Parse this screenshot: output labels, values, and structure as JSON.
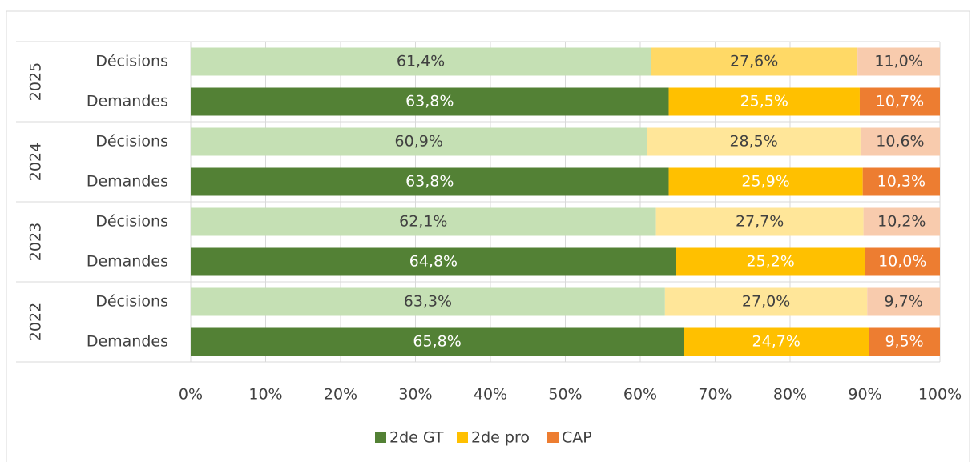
{
  "chart_data": {
    "type": "stacked_bar_horizontal",
    "groups": [
      "2025",
      "2024",
      "2023",
      "2022"
    ],
    "categories": [
      "Décisions",
      "Demandes",
      "Décisions",
      "Demandes",
      "Décisions",
      "Demandes",
      "Décisions",
      "Demandes"
    ],
    "series": [
      {
        "name": "2de GT",
        "color": "#538135",
        "colors": [
          "#c5e0b4",
          "#538135",
          "#c5e0b4",
          "#538135",
          "#c5e0b4",
          "#538135",
          "#c5e0b4",
          "#538135"
        ],
        "values": [
          61.4,
          63.8,
          60.9,
          63.8,
          62.1,
          64.8,
          63.3,
          65.8
        ],
        "value_labels": [
          "61,4%",
          "63,8%",
          "60,9%",
          "63,8%",
          "62,1%",
          "64,8%",
          "63,3%",
          "65,8%"
        ]
      },
      {
        "name": "2de pro",
        "color": "#ffc000",
        "colors": [
          "#ffd966",
          "#ffc000",
          "#ffe699",
          "#ffc000",
          "#ffe699",
          "#ffc000",
          "#ffe699",
          "#ffc000"
        ],
        "values": [
          27.6,
          25.5,
          28.5,
          25.9,
          27.7,
          25.2,
          27.0,
          24.7
        ],
        "value_labels": [
          "27,6%",
          "25,5%",
          "28,5%",
          "25,9%",
          "27,7%",
          "25,2%",
          "27,0%",
          "24,7%"
        ]
      },
      {
        "name": "CAP",
        "color": "#ed7d31",
        "colors": [
          "#f8cbad",
          "#ed7d31",
          "#f8cbad",
          "#ed7d31",
          "#f8cbad",
          "#ed7d31",
          "#f8cbad",
          "#ed7d31"
        ],
        "values": [
          11.0,
          10.7,
          10.6,
          10.3,
          10.2,
          10.0,
          9.7,
          9.5
        ],
        "value_labels": [
          "11,0%",
          "10,7%",
          "10,6%",
          "10,3%",
          "10,2%",
          "10,0%",
          "9,7%",
          "9,5%"
        ]
      }
    ],
    "xlim": [
      0,
      100
    ],
    "xticks": [
      {
        "value": 0,
        "label": "0%"
      },
      {
        "value": 10,
        "label": "10%"
      },
      {
        "value": 20,
        "label": "20%"
      },
      {
        "value": 30,
        "label": "30%"
      },
      {
        "value": 40,
        "label": "40%"
      },
      {
        "value": 50,
        "label": "50%"
      },
      {
        "value": 60,
        "label": "60%"
      },
      {
        "value": 70,
        "label": "70%"
      },
      {
        "value": 80,
        "label": "80%"
      },
      {
        "value": 90,
        "label": "90%"
      },
      {
        "value": 100,
        "label": "100%"
      }
    ],
    "grid": true,
    "legend": "bottom"
  }
}
